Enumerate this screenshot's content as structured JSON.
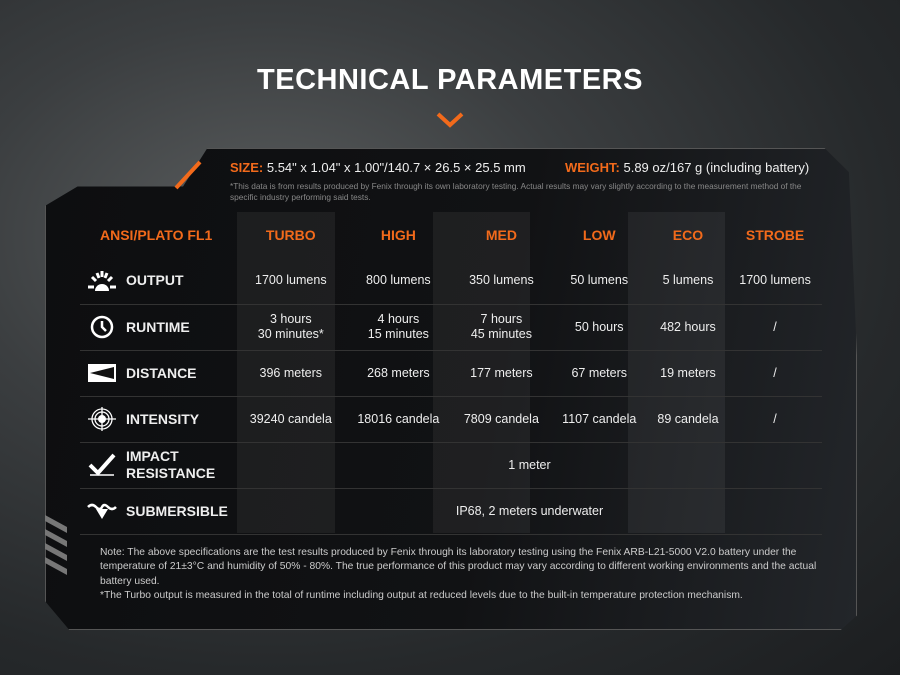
{
  "title": "TECHNICAL PARAMETERS",
  "specs": {
    "size_label": "SIZE:",
    "size_value": "5.54\" x 1.04\" x 1.00\"/140.7 × 26.5 × 25.5 mm",
    "weight_label": "WEIGHT:",
    "weight_value": "5.89 oz/167 g (including battery)",
    "disclaimer": "*This data is from results produced by Fenix through its own laboratory testing. Actual results may vary slightly according to the measurement method of the specific industry performing said tests."
  },
  "table": {
    "headers": [
      "ANSI/PLATO FL1",
      "TURBO",
      "HIGH",
      "MED",
      "LOW",
      "ECO",
      "STROBE"
    ],
    "rows": [
      {
        "label": "OUTPUT",
        "icon": "light-burst-icon",
        "cells": [
          "1700 lumens",
          "800 lumens",
          "350 lumens",
          "50 lumens",
          "5 lumens",
          "1700 lumens"
        ]
      },
      {
        "label": "RUNTIME",
        "icon": "clock-icon",
        "cells": [
          "3 hours\n30 minutes*",
          "4 hours\n15 minutes",
          "7 hours\n45 minutes",
          "50 hours",
          "482 hours",
          "/"
        ]
      },
      {
        "label": "DISTANCE",
        "icon": "beam-distance-icon",
        "cells": [
          "396 meters",
          "268 meters",
          "177 meters",
          "67 meters",
          "19 meters",
          "/"
        ]
      },
      {
        "label": "INTENSITY",
        "icon": "target-icon",
        "cells": [
          "39240 candela",
          "18016 candela",
          "7809 candela",
          "1107 candela",
          "89 candela",
          "/"
        ]
      },
      {
        "label": "IMPACT\nRESISTANCE",
        "icon": "impact-icon",
        "value": "1 meter"
      },
      {
        "label": "SUBMERSIBLE",
        "icon": "water-icon",
        "value": "IP68, 2 meters underwater"
      }
    ]
  },
  "note": "Note: The above specifications are the test results produced by Fenix through its laboratory testing using the Fenix ARB-L21-5000 V2.0 battery under the temperature of 21±3°C and humidity of 50% - 80%. The true performance of this product may vary according to different working environments and the actual battery used.",
  "footnote": "*The Turbo output is measured in the total of runtime including output at reduced levels due to the built-in temperature protection mechanism.",
  "colors": {
    "accent": "#f26a1b"
  }
}
